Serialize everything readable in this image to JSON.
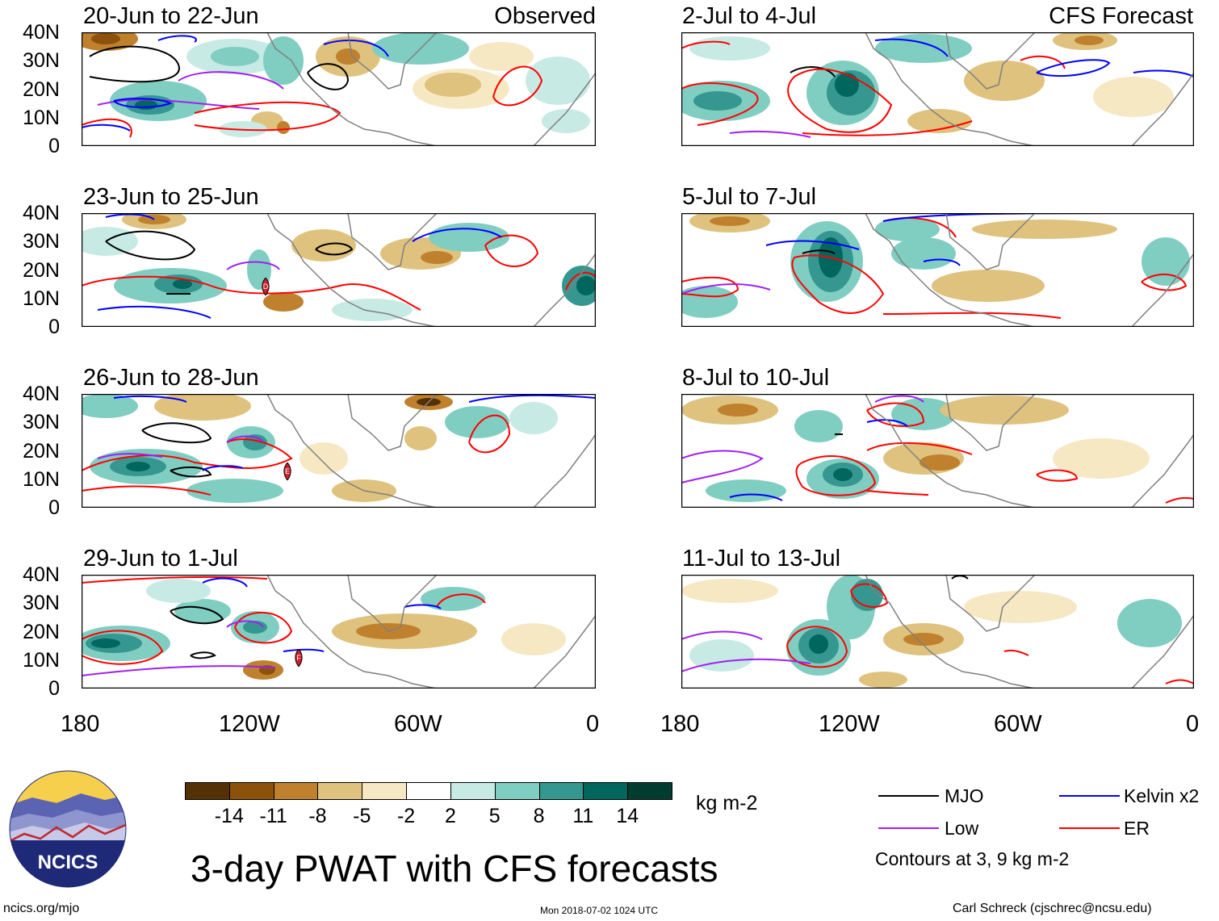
{
  "panels_left": [
    {
      "title": "20-Jun to 22-Jun",
      "tag": "Observed"
    },
    {
      "title": "23-Jun to 25-Jun",
      "tag": ""
    },
    {
      "title": "26-Jun to 28-Jun",
      "tag": ""
    },
    {
      "title": "29-Jun to 1-Jul",
      "tag": ""
    }
  ],
  "panels_right": [
    {
      "title": "2-Jul to 4-Jul",
      "tag": "CFS Forecast"
    },
    {
      "title": "5-Jul to 7-Jul",
      "tag": ""
    },
    {
      "title": "8-Jul to 10-Jul",
      "tag": ""
    },
    {
      "title": "11-Jul to 13-Jul",
      "tag": ""
    }
  ],
  "lat_labels": [
    "40N",
    "30N",
    "20N",
    "10N",
    "0"
  ],
  "lon_labels": [
    "180",
    "120W",
    "60W",
    "0"
  ],
  "colorbar": {
    "unit": "kg m-2",
    "labels": [
      "-14",
      "-11",
      "-8",
      "-5",
      "-2",
      "2",
      "5",
      "8",
      "11",
      "14"
    ],
    "colors": [
      "#543005",
      "#8c510a",
      "#bf812d",
      "#dfc27d",
      "#f6e8c3",
      "#ffffff",
      "#c7eae5",
      "#80cdc1",
      "#35978f",
      "#01665e",
      "#003c30"
    ]
  },
  "legend": {
    "items": [
      {
        "label": "MJO",
        "color": "#000000"
      },
      {
        "label": "Kelvin x2",
        "color": "#0000ff"
      },
      {
        "label": "Low",
        "color": "#a020f0"
      },
      {
        "label": "ER",
        "color": "#ff0000"
      }
    ],
    "note": "Contours at 3, 9 kg m-2"
  },
  "title": "3-day PWAT with CFS forecasts",
  "logo_text": "NCICS",
  "footer": {
    "url": "ncics.org/mjo",
    "timestamp": "Mon 2018-07-02 1024 UTC",
    "credit": "Carl Schreck (cjschrec@ncsu.edu)"
  },
  "storm_markers": [
    "D",
    "E",
    "F"
  ]
}
